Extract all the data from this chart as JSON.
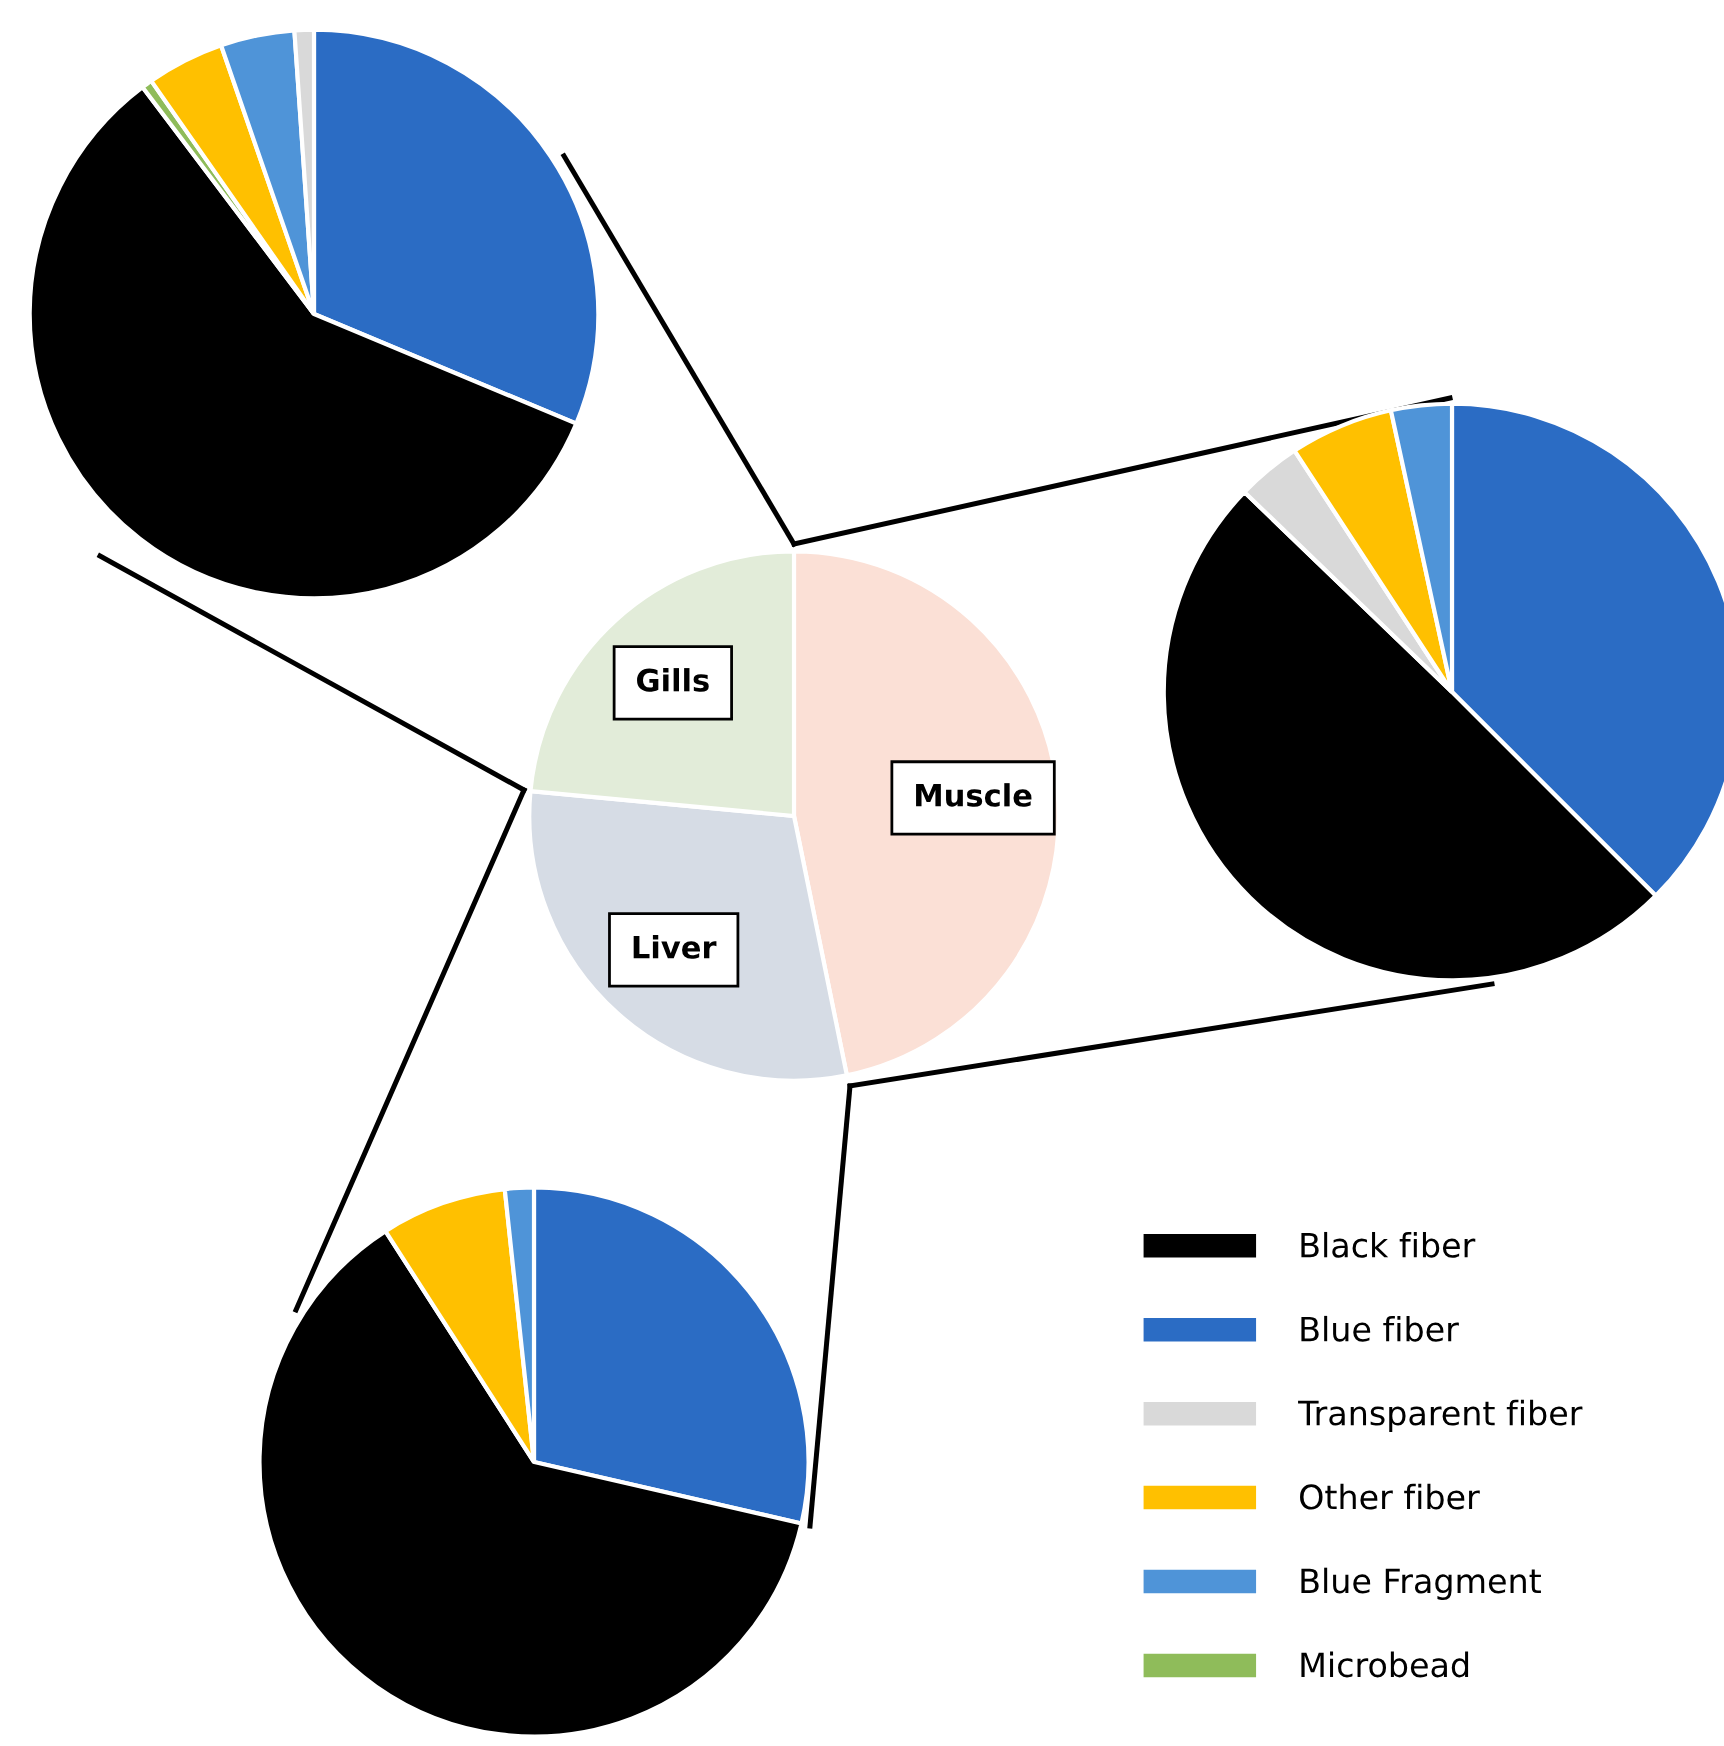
{
  "chart_data": [
    {
      "type": "pie",
      "categories": [
        "Blue fiber",
        "Black fiber",
        "Microbead",
        "Other fiber",
        "Blue Fragment",
        "Transparent fiber"
      ],
      "values": [
        31.3,
        58.4,
        0.6,
        4.4,
        4.2,
        1.1
      ],
      "colors": [
        "#2b6cc4",
        "#000000",
        "#8fbc5a",
        "#ffc000",
        "#4f94d8",
        "#d9d9d9"
      ],
      "legend": "bottom right"
    },
    {
      "type": "pie",
      "categories": [
        "Muscle",
        "Liver",
        "Gills"
      ],
      "values": [
        46.8,
        29.7,
        23.5
      ],
      "colors": [
        "#fbe0d6",
        "#d6dce5",
        "#e2ecd9"
      ]
    },
    {
      "type": "pie",
      "categories": [
        null,
        null,
        null,
        null,
        null
      ],
      "values": [
        37.5,
        49.7,
        3.6,
        5.8,
        3.4
      ],
      "colors": [
        "#2b6cc4",
        "#000000",
        "#d9d9d9",
        "#ffc000",
        "#4f94d8"
      ]
    },
    {
      "type": "pie",
      "categories": [
        null,
        null,
        null,
        null
      ],
      "values": [
        28.6,
        62.3,
        7.4,
        1.7
      ],
      "colors": [
        "#2b6cc4",
        "#000000",
        "#ffc000",
        "#4f94d8"
      ]
    }
  ]
}
